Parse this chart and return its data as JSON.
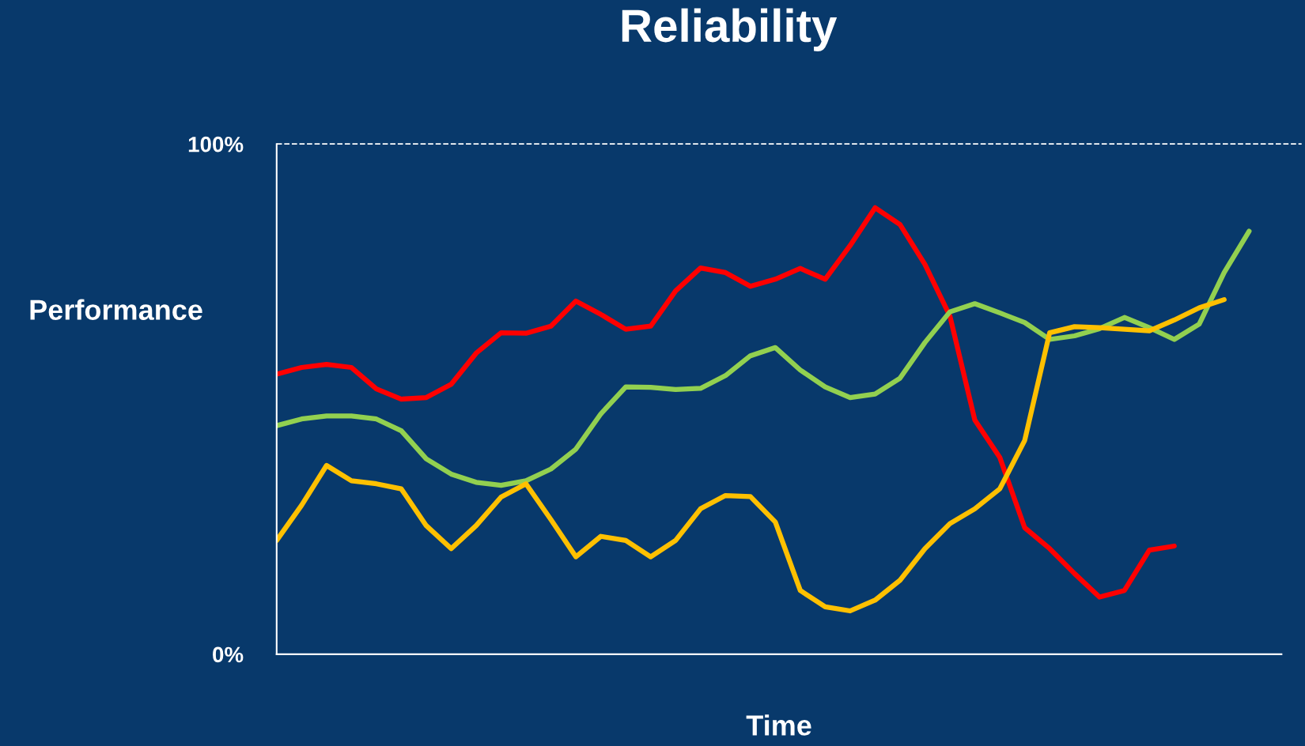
{
  "chart_data": {
    "type": "line",
    "title": "Reliability",
    "xlabel": "Time",
    "ylabel": "Performance",
    "categories": [
      null,
      null,
      null,
      null,
      null,
      null,
      null,
      null,
      null,
      null,
      null,
      null,
      null,
      null,
      null,
      null,
      null,
      null,
      null,
      null,
      null,
      null,
      null,
      null,
      null,
      null,
      null,
      null,
      null,
      null,
      null,
      null,
      null,
      null,
      null,
      null,
      null,
      null,
      null,
      null
    ],
    "series": [
      {
        "color": "#ff0000",
        "values": [
          54.9,
          56.2,
          56.8,
          56.2,
          52.0,
          50.0,
          50.3,
          52.9,
          59.0,
          63.0,
          62.9,
          64.3,
          69.2,
          66.6,
          63.7,
          64.3,
          71.2,
          75.7,
          74.8,
          72.1,
          73.5,
          75.6,
          73.5,
          80.1,
          87.5,
          84.2,
          76.4,
          66.3,
          45.9,
          38.6,
          24.8,
          20.7,
          15.8,
          11.2,
          12.5,
          20.4,
          21.2,
          null,
          null,
          null
        ]
      },
      {
        "color": "#92d050",
        "values": [
          44.8,
          46.1,
          46.7,
          46.7,
          46.1,
          43.8,
          38.3,
          35.3,
          33.7,
          33.1,
          34.0,
          36.3,
          40.2,
          47.1,
          52.4,
          52.3,
          51.9,
          52.1,
          54.6,
          58.5,
          60.1,
          55.7,
          52.4,
          50.3,
          51.0,
          54.1,
          61.1,
          67.1,
          68.7,
          66.9,
          65.0,
          61.7,
          62.4,
          63.8,
          66.0,
          64.0,
          61.7,
          64.7,
          74.8,
          82.9
        ]
      },
      {
        "color": "#ffc000",
        "values": [
          22.3,
          29.2,
          37.0,
          34.0,
          33.4,
          32.4,
          25.2,
          20.7,
          25.2,
          30.8,
          33.4,
          26.4,
          19.1,
          23.1,
          22.3,
          19.1,
          22.3,
          28.5,
          31.1,
          30.9,
          25.9,
          12.5,
          9.3,
          8.5,
          10.6,
          14.5,
          20.7,
          25.6,
          28.5,
          32.4,
          41.9,
          63.0,
          64.2,
          64.0,
          63.7,
          63.4,
          65.5,
          67.9,
          69.5,
          null
        ]
      }
    ],
    "ylim": [
      0,
      100
    ],
    "yticks": [
      {
        "value": 0,
        "label": "0%"
      },
      {
        "value": 100,
        "label": "100%"
      }
    ],
    "tick_labels": "y",
    "grid": false,
    "legend": false,
    "line_style": "solid",
    "marker": "none",
    "ref_lines": [
      {
        "axis": "y",
        "value": 100,
        "label": null,
        "color": "#ffffff",
        "line_style": "dashed"
      }
    ]
  }
}
